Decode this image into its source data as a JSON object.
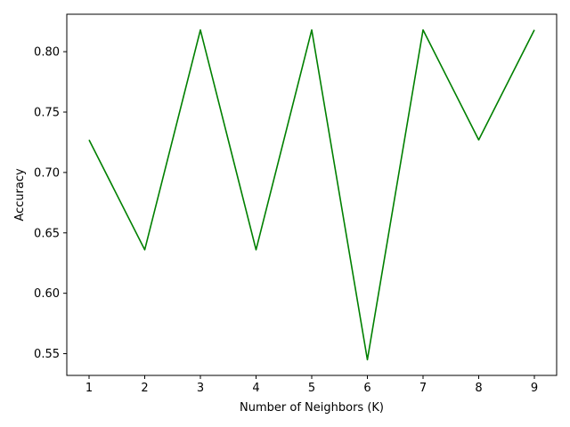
{
  "chart_data": {
    "type": "line",
    "title": "",
    "xlabel": "Number of Neighbors (K)",
    "ylabel": "Accuracy",
    "x": [
      1,
      2,
      3,
      4,
      5,
      6,
      7,
      8,
      9
    ],
    "series": [
      {
        "values": [
          0.727,
          0.636,
          0.818,
          0.636,
          0.818,
          0.545,
          0.818,
          0.727,
          0.818
        ],
        "color": "#008000"
      }
    ],
    "xlim": [
      0.6,
      9.4
    ],
    "ylim": [
      0.532,
      0.831
    ],
    "xticks": [
      1,
      2,
      3,
      4,
      5,
      6,
      7,
      8,
      9
    ],
    "yticks": [
      0.55,
      0.6,
      0.65,
      0.7,
      0.75,
      0.8
    ],
    "ytick_labels": [
      "0.55",
      "0.60",
      "0.65",
      "0.70",
      "0.75",
      "0.80"
    ],
    "grid": false,
    "legend": "none"
  }
}
